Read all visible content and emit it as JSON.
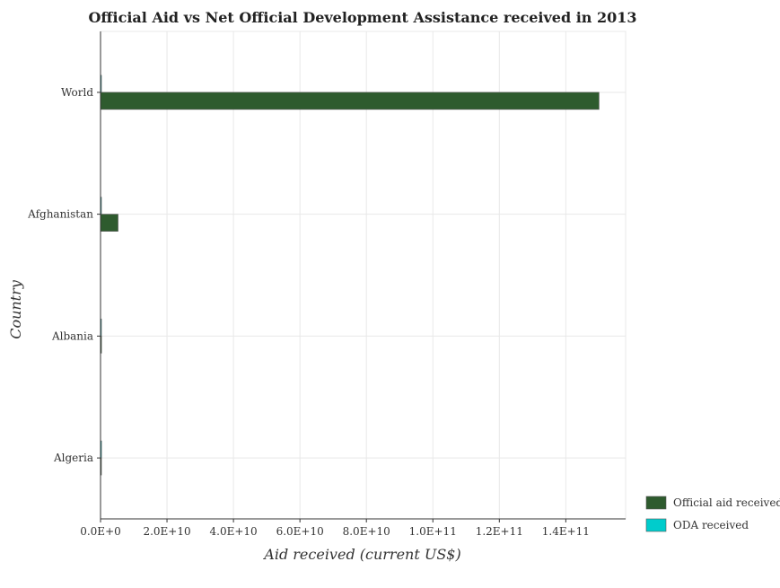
{
  "chart_data": {
    "type": "bar",
    "orientation": "horizontal",
    "title": "Official Aid vs Net Official Development Assistance received in 2013",
    "xlabel": "Aid received (current US$)",
    "ylabel": "Country",
    "categories": [
      "World",
      "Afghanistan",
      "Albania",
      "Algeria"
    ],
    "xlim": [
      0,
      158000000000
    ],
    "xticks": [
      0,
      20000000000,
      40000000000,
      60000000000,
      80000000000,
      100000000000,
      120000000000,
      140000000000
    ],
    "xtick_labels": [
      "0.0E+0",
      "2.0E+10",
      "4.0E+10",
      "6.0E+10",
      "8.0E+10",
      "1.0E+11",
      "1.2E+11",
      "1.4E+11"
    ],
    "series": [
      {
        "name": "Official aid received",
        "color": "#2e5b2e",
        "values": [
          150000000000,
          5270000000,
          290000000,
          210000000
        ]
      },
      {
        "name": "ODA received",
        "color": "#00cccc",
        "values": [
          210000000,
          4000000,
          120000000,
          290000000
        ]
      }
    ],
    "grid": true,
    "legend_position": "bottom-right"
  }
}
